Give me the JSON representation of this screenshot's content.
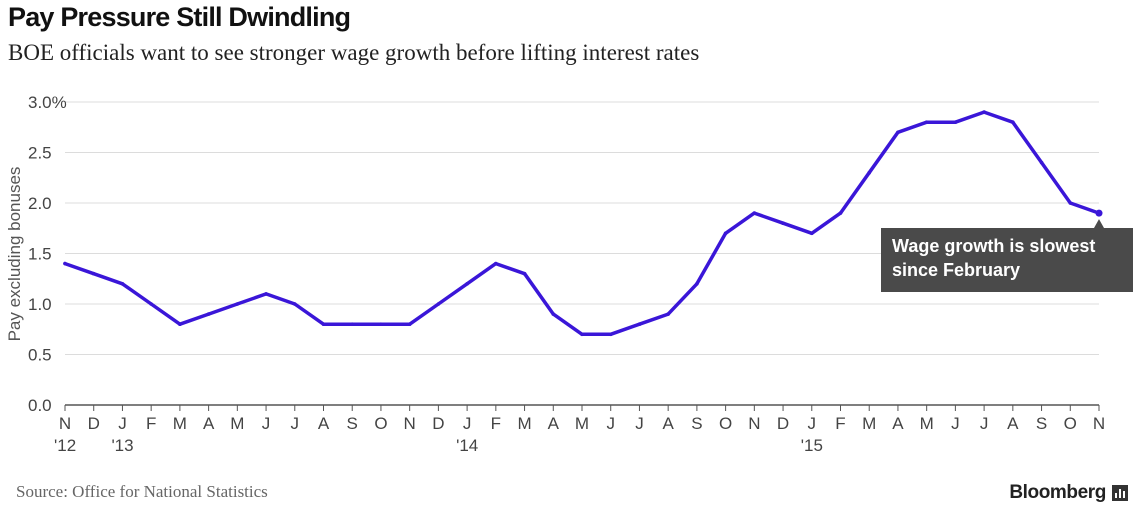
{
  "chart_data": {
    "type": "line",
    "title": "Pay Pressure Still Dwindling",
    "subtitle": "BOE officials want to see stronger wage growth before lifting interest rates",
    "ylabel": "Pay excluding bonuses",
    "xlabel": "",
    "ylim": [
      0,
      3
    ],
    "yticks": [
      "3.0%",
      "2.5",
      "2.0",
      "1.5",
      "1.0",
      "0.5",
      "0.0"
    ],
    "categories": [
      "N",
      "D",
      "J",
      "F",
      "M",
      "A",
      "M",
      "J",
      "J",
      "A",
      "S",
      "O",
      "N",
      "D",
      "J",
      "F",
      "M",
      "A",
      "M",
      "J",
      "J",
      "A",
      "S",
      "O",
      "N",
      "D",
      "J",
      "F",
      "M",
      "A",
      "M",
      "J",
      "J",
      "A",
      "S",
      "O",
      "N"
    ],
    "year_labels": [
      {
        "index": 0,
        "label": "'12"
      },
      {
        "index": 2,
        "label": "'13"
      },
      {
        "index": 14,
        "label": "'14"
      },
      {
        "index": 26,
        "label": "'15"
      }
    ],
    "series": [
      {
        "name": "Pay excluding bonuses",
        "color": "#3a16d8",
        "values": [
          1.4,
          1.3,
          1.2,
          1.0,
          0.8,
          0.9,
          1.0,
          1.1,
          1.0,
          0.8,
          0.8,
          0.8,
          0.8,
          1.0,
          1.2,
          1.4,
          1.3,
          0.9,
          0.7,
          0.7,
          0.8,
          0.9,
          1.2,
          1.7,
          1.9,
          1.8,
          1.7,
          1.9,
          2.3,
          2.7,
          2.8,
          2.8,
          2.9,
          2.8,
          2.4,
          2.0,
          1.9
        ]
      }
    ],
    "annotation": {
      "text_line1": "Wage growth is slowest",
      "text_line2": "since February",
      "point_index": 36
    }
  },
  "footer": {
    "source": "Source: Office for National Statistics",
    "brand": "Bloomberg"
  }
}
